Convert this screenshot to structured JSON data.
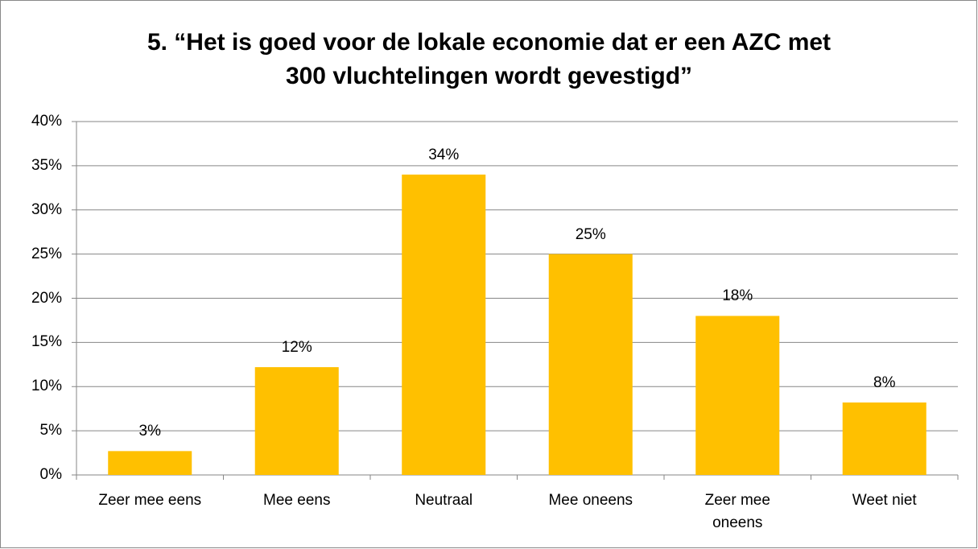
{
  "chart_data": {
    "type": "bar",
    "title": [
      "5. “Het is goed voor de lokale economie dat er een AZC met",
      "300 vluchtelingen wordt gevestigd”"
    ],
    "categories": [
      "Zeer mee eens",
      "Mee eens",
      "Neutraal",
      "Mee oneens",
      "Zeer mee oneens",
      "Weet niet"
    ],
    "values": [
      2.7,
      12.2,
      34,
      25,
      18,
      8.2
    ],
    "value_labels": [
      "3%",
      "12%",
      "34%",
      "25%",
      "18%",
      "8%"
    ],
    "color": "#FFC000",
    "ylim": [
      0,
      40
    ],
    "yticks": [
      {
        "value": 0,
        "label": "0%"
      },
      {
        "value": 5,
        "label": "5%"
      },
      {
        "value": 10,
        "label": "10%"
      },
      {
        "value": 15,
        "label": "15%"
      },
      {
        "value": 20,
        "label": "20%"
      },
      {
        "value": 25,
        "label": "25%"
      },
      {
        "value": 30,
        "label": "30%"
      },
      {
        "value": 35,
        "label": "35%"
      },
      {
        "value": 40,
        "label": "40%"
      }
    ],
    "grid": true
  }
}
